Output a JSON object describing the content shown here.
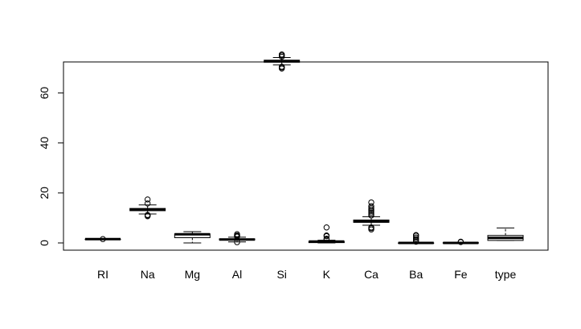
{
  "chart_data": {
    "type": "boxplot",
    "title": "",
    "xlabel": "",
    "ylabel": "",
    "ylim": [
      -3,
      78
    ],
    "yticks": [
      0,
      20,
      40,
      60
    ],
    "grid": false,
    "categories": [
      "RI",
      "Na",
      "Mg",
      "Al",
      "Si",
      "K",
      "Ca",
      "Ba",
      "Fe",
      "type"
    ],
    "boxes": [
      {
        "label": "RI",
        "whisker_low": 1.51,
        "q1": 1.516,
        "median": 1.518,
        "q3": 1.519,
        "whisker_high": 1.53,
        "outliers": [
          1.534
        ]
      },
      {
        "label": "Na",
        "whisker_low": 11.6,
        "q1": 12.9,
        "median": 13.3,
        "q3": 13.8,
        "whisker_high": 15.2,
        "outliers": [
          10.7,
          11.0,
          11.2,
          15.8,
          17.4
        ]
      },
      {
        "label": "Mg",
        "whisker_low": 0.0,
        "q1": 2.1,
        "median": 3.48,
        "q3": 3.6,
        "whisker_high": 4.5,
        "outliers": []
      },
      {
        "label": "Al",
        "whisker_low": 0.4,
        "q1": 1.19,
        "median": 1.36,
        "q3": 1.63,
        "whisker_high": 2.3,
        "outliers": [
          0.29,
          2.5,
          2.8,
          3.0,
          3.5
        ]
      },
      {
        "label": "Si",
        "whisker_low": 71.2,
        "q1": 72.3,
        "median": 72.8,
        "q3": 73.1,
        "whisker_high": 74.2,
        "outliers": [
          69.8,
          70.2,
          70.5,
          74.5,
          75.0,
          75.4
        ]
      },
      {
        "label": "K",
        "whisker_low": 0.0,
        "q1": 0.12,
        "median": 0.56,
        "q3": 0.61,
        "whisker_high": 1.1,
        "outliers": [
          1.4,
          1.7,
          2.7,
          3.0,
          6.2
        ]
      },
      {
        "label": "Ca",
        "whisker_low": 7.1,
        "q1": 8.24,
        "median": 8.6,
        "q3": 9.17,
        "whisker_high": 10.5,
        "outliers": [
          5.4,
          5.9,
          6.2,
          11.0,
          11.6,
          12.2,
          12.8,
          13.4,
          14.0,
          14.7,
          16.2
        ]
      },
      {
        "label": "Ba",
        "whisker_low": 0.0,
        "q1": 0.0,
        "median": 0.0,
        "q3": 0.0,
        "whisker_high": 0.0,
        "outliers": [
          0.5,
          1.0,
          1.6,
          2.2,
          2.9,
          3.15
        ]
      },
      {
        "label": "Fe",
        "whisker_low": 0.0,
        "q1": 0.0,
        "median": 0.0,
        "q3": 0.1,
        "whisker_high": 0.25,
        "outliers": [
          0.35,
          0.5
        ]
      },
      {
        "label": "type",
        "whisker_low": 1.0,
        "q1": 1.0,
        "median": 2.0,
        "q3": 3.0,
        "whisker_high": 6.0,
        "outliers": []
      }
    ]
  }
}
